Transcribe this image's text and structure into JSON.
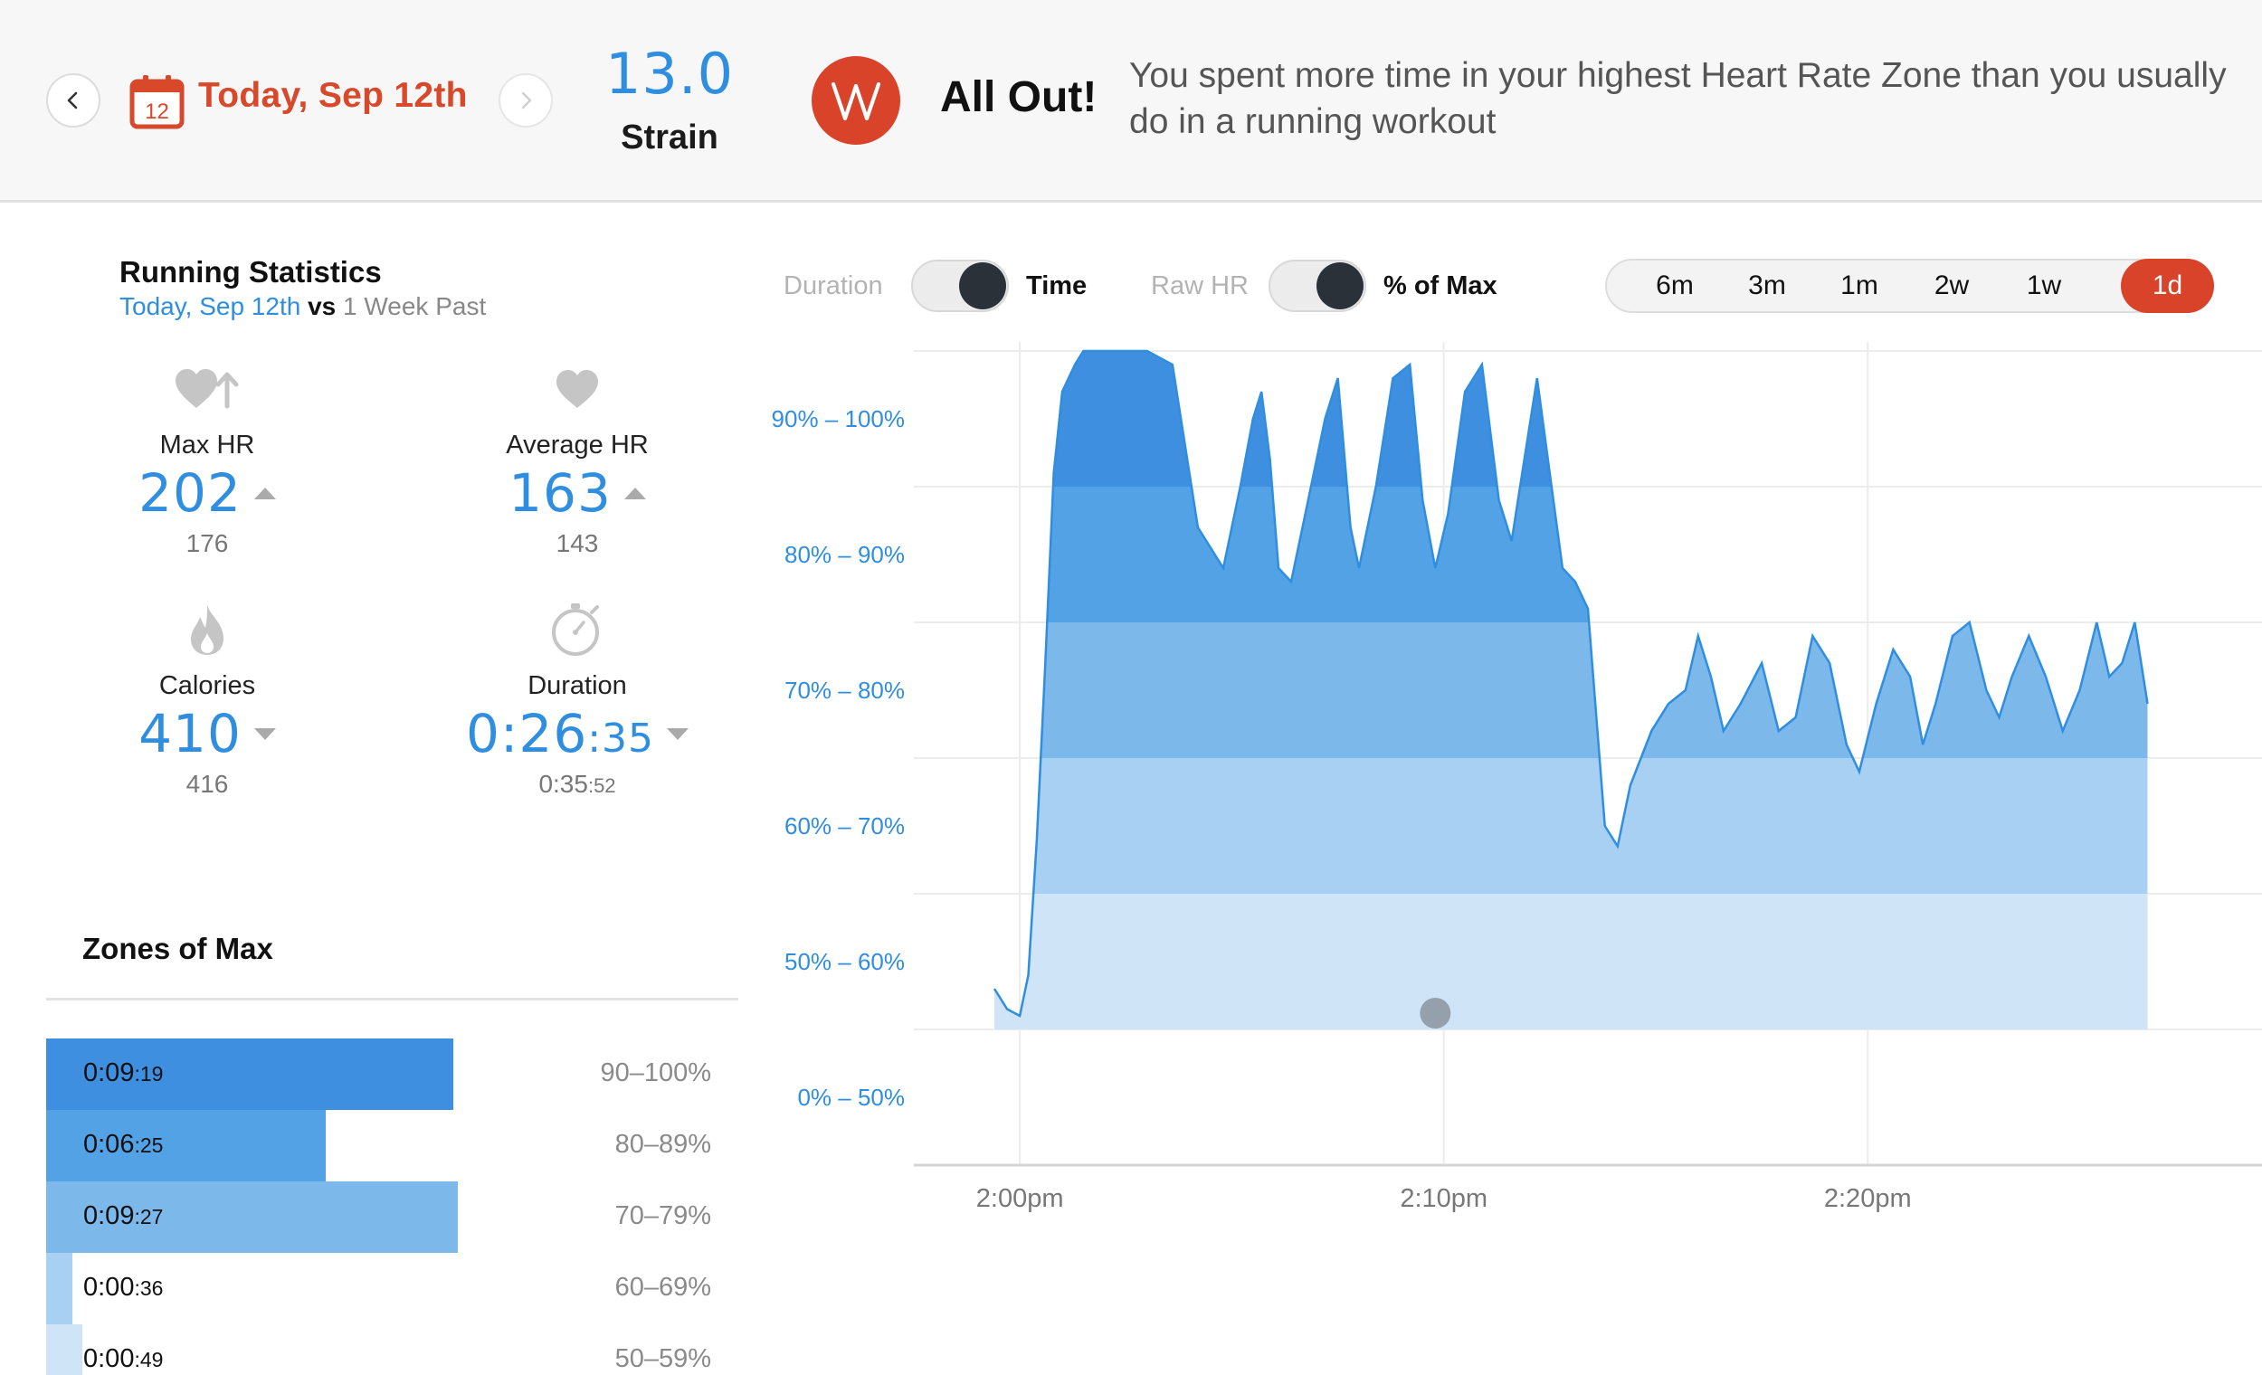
{
  "header": {
    "date_label": "Today, Sep 12th",
    "calendar_day": "12",
    "strain_value": "13.0",
    "strain_label": "Strain",
    "badge_title": "All Out!",
    "badge_message": "You spent more time in your highest Heart Rate Zone than you usually do in a running workout",
    "accent_color": "#d8432a"
  },
  "stats": {
    "title": "Running Statistics",
    "compare_today": "Today, Sep 12th",
    "compare_vs": "vs",
    "compare_past": "1 Week Past",
    "max_hr": {
      "label": "Max HR",
      "value": "202",
      "previous": "176",
      "trend": "up",
      "icon": "heart-up-icon"
    },
    "avg_hr": {
      "label": "Average HR",
      "value": "163",
      "previous": "143",
      "trend": "up",
      "icon": "heart-icon"
    },
    "calories": {
      "label": "Calories",
      "value": "410",
      "previous": "416",
      "trend": "down",
      "icon": "flame-icon"
    },
    "duration": {
      "label": "Duration",
      "value_main": "0:26",
      "value_small": ":35",
      "previous_main": "0:35",
      "previous_small": ":52",
      "trend": "down",
      "icon": "stopwatch-icon"
    }
  },
  "zones": {
    "title": "Zones of Max",
    "rows": [
      {
        "time_main": "0:09",
        "time_small": ":19",
        "range": "90–100%",
        "color": "#3f8fe0",
        "fraction": 0.588
      },
      {
        "time_main": "0:06",
        "time_small": ":25",
        "range": "80–89%",
        "color": "#54a2e6",
        "fraction": 0.404
      },
      {
        "time_main": "0:09",
        "time_small": ":27",
        "range": "70–79%",
        "color": "#7db8ea",
        "fraction": 0.595
      },
      {
        "time_main": "0:00",
        "time_small": ":36",
        "range": "60–69%",
        "color": "#a7d0f2",
        "fraction": 0.038
      },
      {
        "time_main": "0:00",
        "time_small": ":49",
        "range": "50–59%",
        "color": "#cfe5f7",
        "fraction": 0.052
      }
    ]
  },
  "controls": {
    "toggle1_off": "Duration",
    "toggle1_on": "Time",
    "toggle2_off": "Raw HR",
    "toggle2_on": "% of Max",
    "ranges": [
      "6m",
      "3m",
      "1m",
      "2w",
      "1w",
      "1d"
    ],
    "active_range": "1d"
  },
  "chart_data": {
    "type": "area",
    "y_unit": "% of max heart rate",
    "y_zones": [
      "0% – 50%",
      "50% – 60%",
      "60% – 70%",
      "70% – 80%",
      "80% – 90%",
      "90% – 100%"
    ],
    "ylim": [
      40,
      100
    ],
    "x_ticks": [
      "2:00pm",
      "2:10pm",
      "2:20pm"
    ],
    "x_start_min": -0.6,
    "x_end_min": 26.6,
    "grid": true,
    "series": [
      {
        "x": [
          -0.6,
          -0.3,
          0,
          0.2,
          0.4,
          0.6,
          0.8,
          1.0,
          1.3,
          1.5,
          1.8,
          2.2,
          2.6,
          3.0,
          3.6,
          4.2,
          4.8,
          5.2,
          5.5,
          5.7,
          5.9,
          6.1,
          6.4,
          6.8,
          7.2,
          7.5,
          7.8,
          8.0,
          8.4,
          8.8,
          9.2,
          9.5,
          9.8,
          10.1,
          10.5,
          10.9,
          11.3,
          11.6,
          11.9,
          12.2,
          12.5,
          12.8,
          13.1,
          13.4,
          13.8,
          14.1,
          14.4,
          14.9,
          15.3,
          15.7,
          16.0,
          16.3,
          16.6,
          17.0,
          17.5,
          17.9,
          18.3,
          18.7,
          19.1,
          19.5,
          19.8,
          20.2,
          20.6,
          21.0,
          21.3,
          21.6,
          22.0,
          22.4,
          22.8,
          23.1,
          23.4,
          23.8,
          24.2,
          24.6,
          25.0,
          25.4,
          25.7,
          26.0,
          26.3,
          26.6
        ],
        "values": [
          53,
          51.5,
          51,
          54,
          64,
          77,
          91,
          97,
          99,
          100,
          100,
          100,
          100,
          100,
          99,
          87,
          84,
          90,
          95,
          97,
          92,
          84,
          83,
          89,
          95,
          98,
          87,
          84,
          90,
          98,
          99,
          89,
          84,
          88,
          97,
          99,
          89,
          86,
          92,
          98,
          91,
          84,
          83,
          81,
          65,
          63.5,
          68,
          72,
          74,
          75,
          79,
          76,
          72,
          74,
          77,
          72,
          73,
          79,
          77,
          71,
          69,
          74,
          78,
          76,
          71,
          74,
          79,
          80,
          75,
          73,
          76,
          79,
          76,
          72,
          75,
          80,
          76,
          77,
          80,
          74
        ],
        "name": ""
      }
    ],
    "zone_colors": [
      "#cfe5f7",
      "#a7d0f2",
      "#7db8ea",
      "#54a2e6",
      "#3f8fe0"
    ],
    "line_color": "#2f8ee0",
    "marker_at_minute": 9.8
  }
}
